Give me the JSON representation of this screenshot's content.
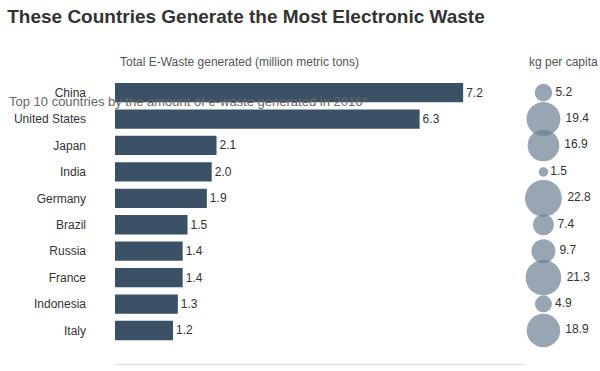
{
  "chart_data": [
    {
      "type": "bar",
      "title": "These Countries Generate the Most Electronic Waste",
      "subtitle": "Top 10 countries by the amount of e-waste generated in 2016*",
      "xlabel": "Total E-Waste generated (million metric tons)",
      "orientation": "horizontal",
      "categories": [
        "China",
        "United States",
        "Japan",
        "India",
        "Germany",
        "Brazil",
        "Russia",
        "France",
        "Indonesia",
        "Italy"
      ],
      "values": [
        7.2,
        6.3,
        2.1,
        2.0,
        1.9,
        1.5,
        1.4,
        1.4,
        1.3,
        1.2
      ],
      "value_labels": [
        "7.2",
        "6.3",
        "2.1",
        "2.0",
        "1.9",
        "1.5",
        "1.4",
        "1.4",
        "1.3",
        "1.2"
      ],
      "color": "#3b5266",
      "xlim": [
        0,
        8.5
      ],
      "xticks": [],
      "data_labels": true,
      "tick_labels": "y",
      "grid": false
    },
    {
      "type": "scatter",
      "title": "kg per capita",
      "categories": [
        "China",
        "United States",
        "Japan",
        "India",
        "Germany",
        "Brazil",
        "Russia",
        "France",
        "Indonesia",
        "Italy"
      ],
      "values": [
        5.2,
        19.4,
        16.9,
        1.5,
        22.8,
        7.4,
        9.7,
        21.3,
        4.9,
        18.9
      ],
      "marker": "circle",
      "color": "#6c8093",
      "data_labels": true,
      "tick_labels": false,
      "grid": false
    }
  ]
}
